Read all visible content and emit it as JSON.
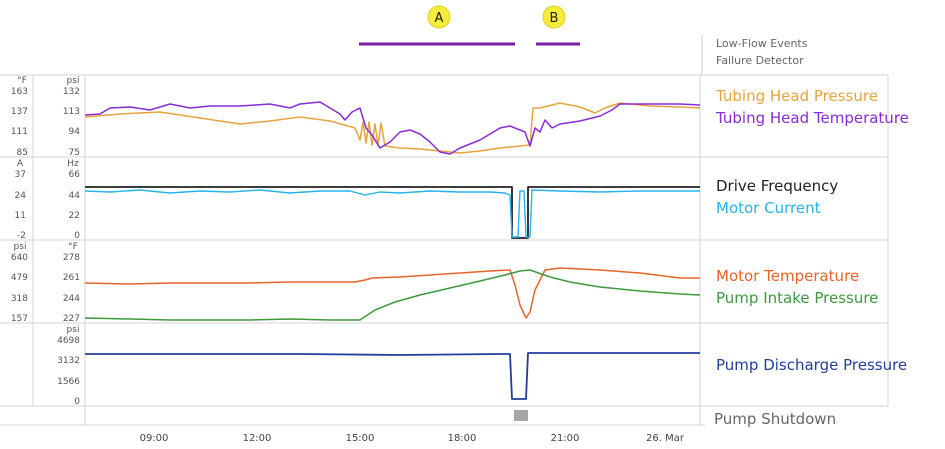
{
  "markers": [
    {
      "label": "A",
      "color": "#f7ec3c"
    },
    {
      "label": "B",
      "color": "#f7ec3c"
    }
  ],
  "event_rows": {
    "low_flow_label": "Low-Flow Events",
    "failure_label": "Failure Detector",
    "event_color": "#7a1ea6",
    "events": [
      {
        "row": "Low-Flow Events",
        "start": "15:00",
        "end": "19:30"
      },
      {
        "row": "Low-Flow Events",
        "start": "20:15",
        "end": "21:30"
      }
    ]
  },
  "time_axis": {
    "ticks": [
      "09:00",
      "12:00",
      "15:00",
      "18:00",
      "21:00",
      "26. Mar"
    ]
  },
  "panels": [
    {
      "left_unit": "°F",
      "left_ticks": [
        "163",
        "137",
        "111",
        "85"
      ],
      "right_unit": "psi",
      "right_ticks": [
        "132",
        "113",
        "94",
        "75"
      ],
      "series": [
        {
          "name": "Tubing Head Pressure",
          "color": "#e8a33d"
        },
        {
          "name": "Tubing Head Temperature",
          "color": "#8a2bd6"
        }
      ]
    },
    {
      "left_unit": "A",
      "left_ticks": [
        "37",
        "24",
        "11",
        "-2"
      ],
      "right_unit": "Hz",
      "right_ticks": [
        "66",
        "44",
        "22",
        "0"
      ],
      "series": [
        {
          "name": "Drive Frequency",
          "color": "#222222"
        },
        {
          "name": "Motor Current",
          "color": "#27b3ec"
        }
      ]
    },
    {
      "left_unit": "psi",
      "left_ticks": [
        "640",
        "479",
        "318",
        "157"
      ],
      "right_unit": "°F",
      "right_ticks": [
        "278",
        "261",
        "244",
        "227"
      ],
      "series": [
        {
          "name": "Motor Temperature",
          "color": "#e8642a"
        },
        {
          "name": "Pump Intake Pressure",
          "color": "#3d9a3d"
        }
      ]
    },
    {
      "left_unit": "",
      "left_ticks": [],
      "right_unit": "psi",
      "right_ticks": [
        "4698",
        "3132",
        "1566",
        "0"
      ],
      "series": [
        {
          "name": "Pump Discharge Pressure",
          "color": "#233f9e"
        }
      ]
    }
  ],
  "shutdown": {
    "label": "Pump Shutdown",
    "color": "#a6a6a6"
  }
}
